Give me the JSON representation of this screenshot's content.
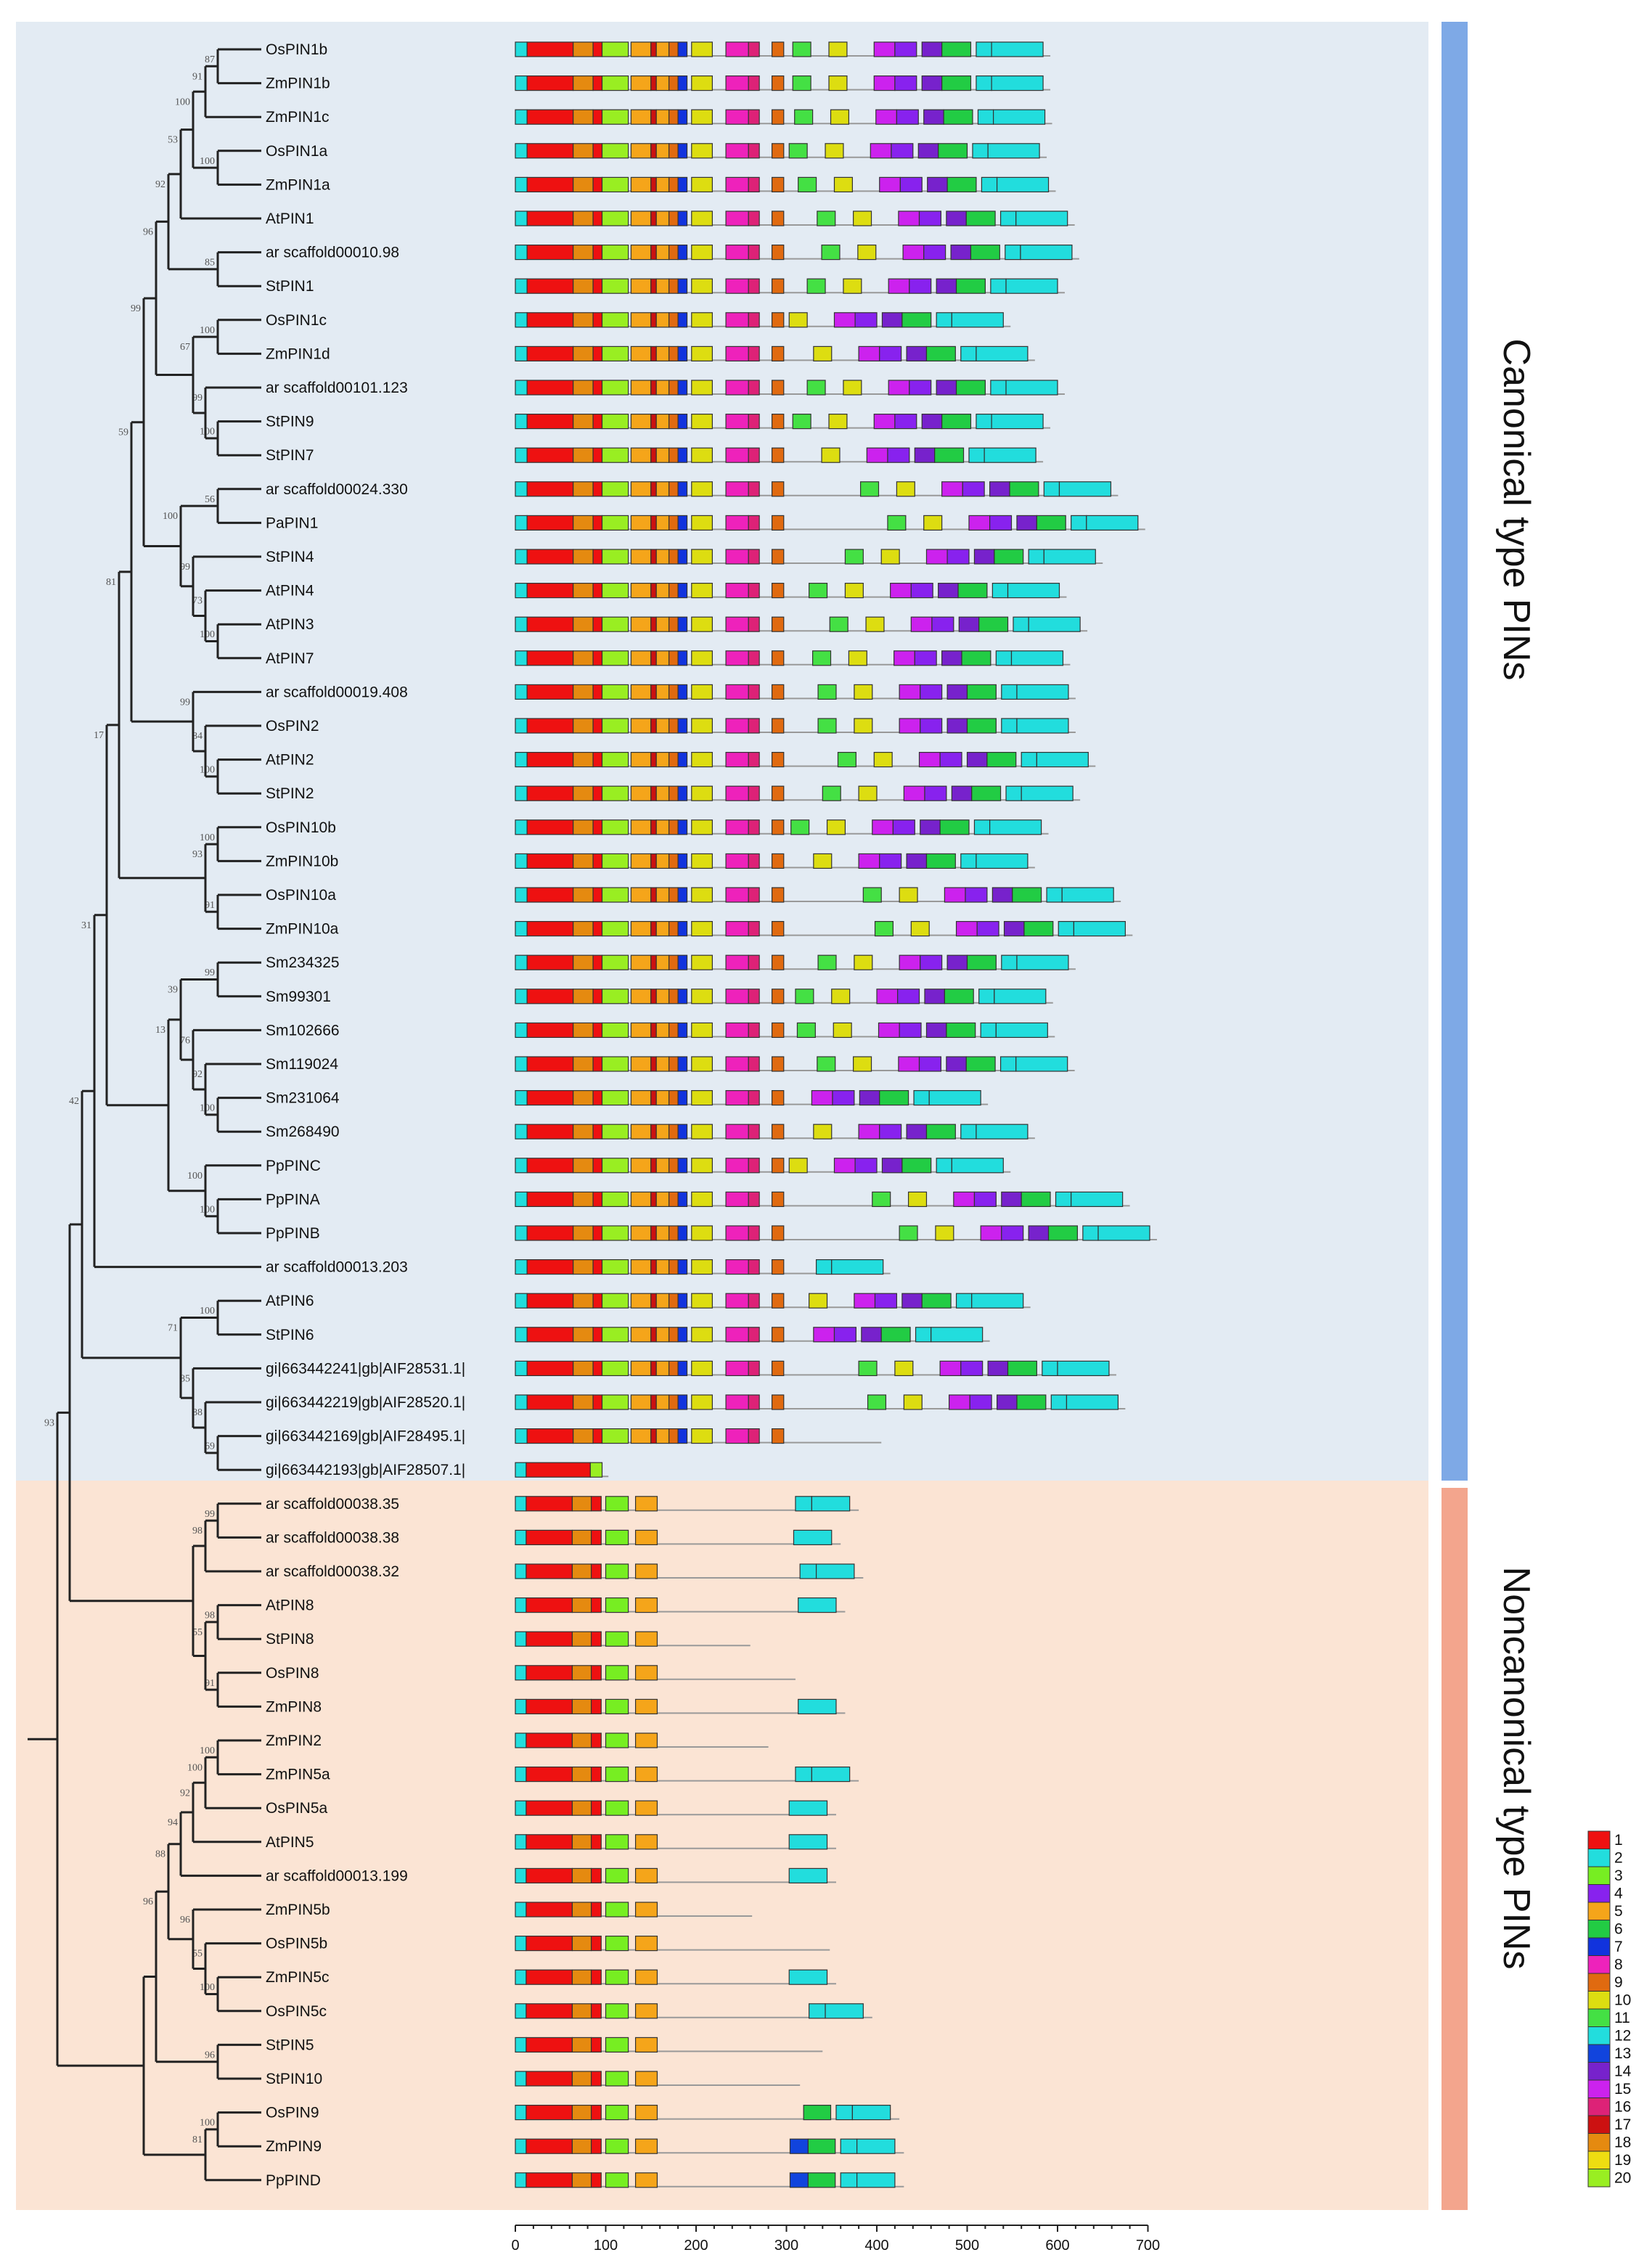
{
  "groups": {
    "canonical": {
      "label": "Canonical type PINs",
      "color": "#7ea9e6",
      "bg": "#e3ebf3"
    },
    "noncanonical": {
      "label": "Noncanonical type PINs",
      "color": "#f3a58d",
      "bg": "#fbe4d4"
    }
  },
  "axis": {
    "min": 0,
    "max": 700,
    "labels": [
      "0",
      "100",
      "200",
      "300",
      "400",
      "500",
      "600",
      "700"
    ]
  },
  "legend": {
    "labels": [
      "1",
      "2",
      "3",
      "4",
      "5",
      "6",
      "7",
      "8",
      "9",
      "10",
      "11",
      "12",
      "13",
      "14",
      "15",
      "16",
      "17",
      "18",
      "19",
      "20"
    ],
    "colors": [
      "#ee1111",
      "#22dddd",
      "#77ee22",
      "#8822ee",
      "#f5a51a",
      "#22cc44",
      "#1133dd",
      "#ee22bb",
      "#e06a10",
      "#dddd11",
      "#44e044",
      "#22dddd",
      "#1144dd",
      "#7722cc",
      "#cc22ee",
      "#dd2277",
      "#cc1111",
      "#e58a10",
      "#eedd11",
      "#99ee22"
    ]
  },
  "motif_scale": "motif positions are in amino-acid units",
  "taxa": [
    "OsPIN1b",
    "ZmPIN1b",
    "ZmPIN1c",
    "OsPIN1a",
    "ZmPIN1a",
    "AtPIN1",
    "ar scaffold00010.98",
    "StPIN1",
    "OsPIN1c",
    "ZmPIN1d",
    "ar scaffold00101.123",
    "StPIN9",
    "StPIN7",
    "ar scaffold00024.330",
    "PaPIN1",
    "StPIN4",
    "AtPIN4",
    "AtPIN3",
    "AtPIN7",
    "ar scaffold00019.408",
    "OsPIN2",
    "AtPIN2",
    "StPIN2",
    "OsPIN10b",
    "ZmPIN10b",
    "OsPIN10a",
    "ZmPIN10a",
    "Sm234325",
    "Sm99301",
    "Sm102666",
    "Sm119024",
    "Sm231064",
    "Sm268490",
    "PpPINC",
    "PpPINA",
    "PpPINB",
    "ar scaffold00013.203",
    "AtPIN6",
    "StPIN6",
    "gi|663442241|gb|AIF28531.1|",
    "gi|663442219|gb|AIF28520.1|",
    "gi|663442169|gb|AIF28495.1|",
    "gi|663442193|gb|AIF28507.1|",
    "ar scaffold00038.35",
    "ar scaffold00038.38",
    "ar scaffold00038.32",
    "AtPIN8",
    "StPIN8",
    "OsPIN8",
    "ZmPIN8",
    "ZmPIN2",
    "ZmPIN5a",
    "OsPIN5a",
    "AtPIN5",
    "ar scaffold00013.199",
    "ZmPIN5b",
    "OsPIN5b",
    "ZmPIN5c",
    "OsPIN5c",
    "StPIN5",
    "StPIN10",
    "OsPIN9",
    "ZmPIN9",
    "PpPIND"
  ],
  "seq_lengths": [
    592,
    592,
    594,
    588,
    598,
    619,
    624,
    608,
    548,
    575,
    608,
    592,
    584,
    667,
    697,
    650,
    610,
    633,
    614,
    620,
    620,
    642,
    625,
    590,
    575,
    670,
    683,
    620,
    595,
    597,
    619,
    523,
    575,
    548,
    680,
    710,
    415,
    570,
    525,
    665,
    675,
    405,
    103,
    380,
    360,
    385,
    365,
    260,
    310,
    365,
    280,
    380,
    355,
    355,
    355,
    262,
    348,
    355,
    395,
    340,
    315,
    425,
    430,
    430
  ],
  "nodes": [
    {
      "id": "n1",
      "kids": [
        0,
        1
      ],
      "label": "87"
    },
    {
      "id": "n2",
      "kids": [
        "n1",
        2
      ],
      "label": "91"
    },
    {
      "id": "n3",
      "kids": [
        3,
        4
      ],
      "label": "100"
    },
    {
      "id": "n4",
      "kids": [
        "n2",
        "n3"
      ],
      "label": "100"
    },
    {
      "id": "n5",
      "kids": [
        "n4",
        5
      ],
      "label": "53"
    },
    {
      "id": "n6",
      "kids": [
        6,
        7
      ],
      "label": "85"
    },
    {
      "id": "n7",
      "kids": [
        "n5",
        "n6"
      ],
      "label": "92"
    },
    {
      "id": "n8",
      "kids": [
        8,
        9
      ],
      "label": "100"
    },
    {
      "id": "n9",
      "kids": [
        11,
        12
      ],
      "label": "100"
    },
    {
      "id": "n10",
      "kids": [
        10,
        "n9"
      ],
      "label": "99"
    },
    {
      "id": "n11",
      "kids": [
        "n8",
        "n10"
      ],
      "label": "67"
    },
    {
      "id": "n12",
      "kids": [
        "n7",
        "n11"
      ],
      "label": "96"
    },
    {
      "id": "n13",
      "kids": [
        13,
        14
      ],
      "label": "56"
    },
    {
      "id": "n14",
      "kids": [
        17,
        18
      ],
      "label": "100"
    },
    {
      "id": "n15",
      "kids": [
        16,
        "n14"
      ],
      "label": "73"
    },
    {
      "id": "n16",
      "kids": [
        15,
        "n15"
      ],
      "label": "99"
    },
    {
      "id": "n17",
      "kids": [
        "n13",
        "n16"
      ],
      "label": "100"
    },
    {
      "id": "n18",
      "kids": [
        "n12",
        "n17"
      ],
      "label": "99"
    },
    {
      "id": "n19",
      "kids": [
        21,
        22
      ],
      "label": "100"
    },
    {
      "id": "n20",
      "kids": [
        20,
        "n19"
      ],
      "label": "84"
    },
    {
      "id": "n21",
      "kids": [
        19,
        "n20"
      ],
      "label": "99"
    },
    {
      "id": "n22",
      "kids": [
        "n18",
        "n21"
      ],
      "label": "59"
    },
    {
      "id": "n23",
      "kids": [
        23,
        24
      ],
      "label": "100"
    },
    {
      "id": "n24",
      "kids": [
        25,
        26
      ],
      "label": "91"
    },
    {
      "id": "n25",
      "kids": [
        "n23",
        "n24"
      ],
      "label": "93"
    },
    {
      "id": "n26",
      "kids": [
        "n22",
        "n25"
      ],
      "label": "81"
    },
    {
      "id": "n27",
      "kids": [
        27,
        28
      ],
      "label": "99"
    },
    {
      "id": "n28",
      "kids": [
        31,
        32
      ],
      "label": "100"
    },
    {
      "id": "n29",
      "kids": [
        30,
        "n28"
      ],
      "label": "92"
    },
    {
      "id": "n30",
      "kids": [
        29,
        "n29"
      ],
      "label": "76"
    },
    {
      "id": "n31",
      "kids": [
        "n27",
        "n30"
      ],
      "label": "39"
    },
    {
      "id": "n32",
      "kids": [
        34,
        35
      ],
      "label": "100"
    },
    {
      "id": "n33",
      "kids": [
        33,
        "n32"
      ],
      "label": "100"
    },
    {
      "id": "n34",
      "kids": [
        "n31",
        "n33"
      ],
      "label": "13"
    },
    {
      "id": "n35",
      "kids": [
        "n26",
        "n34"
      ],
      "label": "17"
    },
    {
      "id": "n36",
      "kids": [
        "n35",
        36
      ],
      "label": "31"
    },
    {
      "id": "n37",
      "kids": [
        37,
        38
      ],
      "label": "100"
    },
    {
      "id": "n38",
      "kids": [
        41,
        42
      ],
      "label": "69"
    },
    {
      "id": "n39",
      "kids": [
        40,
        "n38"
      ],
      "label": "88"
    },
    {
      "id": "n40",
      "kids": [
        39,
        "n39"
      ],
      "label": "85"
    },
    {
      "id": "n41",
      "kids": [
        "n37",
        "n40"
      ],
      "label": "71"
    },
    {
      "id": "n42",
      "kids": [
        "n36",
        "n41"
      ],
      "label": "42"
    },
    {
      "id": "n43",
      "kids": [
        43,
        44
      ],
      "label": "99"
    },
    {
      "id": "n44",
      "kids": [
        "n43",
        45
      ],
      "label": "98"
    },
    {
      "id": "n45",
      "kids": [
        46,
        47
      ],
      "label": "98"
    },
    {
      "id": "n46",
      "kids": [
        48,
        49
      ],
      "label": "91"
    },
    {
      "id": "n47",
      "kids": [
        "n45",
        "n46"
      ],
      "label": "55"
    },
    {
      "id": "n48",
      "kids": [
        "n44",
        "n47"
      ],
      "label": ""
    },
    {
      "id": "n49",
      "kids": [
        "n42",
        "n48"
      ],
      "label": ""
    },
    {
      "id": "n50",
      "kids": [
        50,
        51
      ],
      "label": "100"
    },
    {
      "id": "n51",
      "kids": [
        "n50",
        52
      ],
      "label": "100"
    },
    {
      "id": "n52",
      "kids": [
        "n51",
        53
      ],
      "label": "92"
    },
    {
      "id": "n53",
      "kids": [
        "n52",
        54
      ],
      "label": "94"
    },
    {
      "id": "n54",
      "kids": [
        57,
        58
      ],
      "label": "100"
    },
    {
      "id": "n55",
      "kids": [
        56,
        "n54"
      ],
      "label": "55"
    },
    {
      "id": "n56",
      "kids": [
        55,
        "n55"
      ],
      "label": "96"
    },
    {
      "id": "n57",
      "kids": [
        "n53",
        "n56"
      ],
      "label": "88"
    },
    {
      "id": "n58",
      "kids": [
        59,
        60
      ],
      "label": "96"
    },
    {
      "id": "n59",
      "kids": [
        "n57",
        "n58"
      ],
      "label": "96"
    },
    {
      "id": "n60",
      "kids": [
        61,
        62
      ],
      "label": "100"
    },
    {
      "id": "n61",
      "kids": [
        "n60",
        63
      ],
      "label": "81"
    },
    {
      "id": "n62",
      "kids": [
        "n59",
        "n61"
      ],
      "label": ""
    },
    {
      "id": "root",
      "kids": [
        "n49",
        "n62"
      ],
      "label": "93"
    }
  ]
}
